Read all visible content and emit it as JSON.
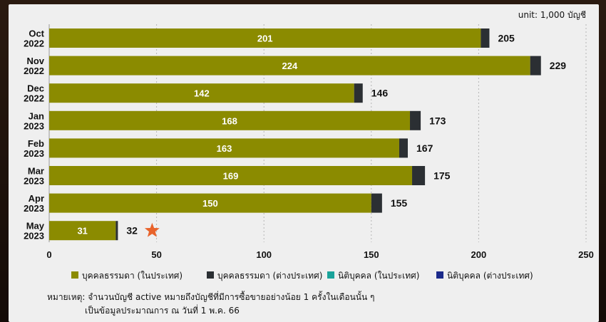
{
  "unit_label": "unit: 1,000 บัญชี",
  "note_line1": "หมายเหตุ: จำนวนบัญชี active หมายถึงบัญชีที่มีการซื้อขายอย่างน้อย 1 ครั้งในเดือนนั้น ๆ",
  "note_line2": "เป็นข้อมูลประมาณการ ณ วันที่ 1 พ.ค. 66",
  "colors": {
    "local_individual": "#8b8b00",
    "foreign_individual": "#2b2f33",
    "local_juristic": "#1aa39a",
    "foreign_juristic": "#1b2a8a",
    "star": "#e8632b"
  },
  "chart_data": {
    "type": "bar",
    "orientation": "horizontal",
    "stacked": true,
    "categories": [
      [
        "Oct",
        "2022"
      ],
      [
        "Nov",
        "2022"
      ],
      [
        "Dec",
        "2022"
      ],
      [
        "Jan",
        "2023"
      ],
      [
        "Feb",
        "2023"
      ],
      [
        "Mar",
        "2023"
      ],
      [
        "Apr",
        "2023"
      ],
      [
        "May",
        "2023"
      ]
    ],
    "series": [
      {
        "name": "บุคคลธรรมดา (ในประเทศ)",
        "values": [
          201,
          224,
          142,
          168,
          163,
          169,
          150,
          31
        ]
      },
      {
        "name": "บุคคลธรรมดา (ต่างประเทศ)",
        "values": [
          4,
          5,
          4,
          5,
          4,
          6,
          5,
          1
        ]
      },
      {
        "name": "นิติบุคคล (ในประเทศ)",
        "values": [
          0,
          0,
          0,
          0,
          0,
          0,
          0,
          0
        ]
      },
      {
        "name": "นิติบุคคล (ต่างประเทศ)",
        "values": [
          0,
          0,
          0,
          0,
          0,
          0,
          0,
          0
        ]
      }
    ],
    "inner_labels": [
      "201",
      "224",
      "142",
      "168",
      "163",
      "169",
      "150",
      "31"
    ],
    "total_labels": [
      "205",
      "229",
      "146",
      "173",
      "167",
      "175",
      "155",
      "32"
    ],
    "totals": [
      205,
      229,
      146,
      173,
      167,
      175,
      155,
      32
    ],
    "xlim": [
      0,
      250
    ],
    "xticks": [
      0,
      50,
      100,
      150,
      200,
      250
    ],
    "xtick_labels": [
      "0",
      "50",
      "100",
      "150",
      "200",
      "250"
    ],
    "grid": "vertical dashed",
    "legend_position": "bottom",
    "annotation": "star marker after May 2023 total"
  }
}
